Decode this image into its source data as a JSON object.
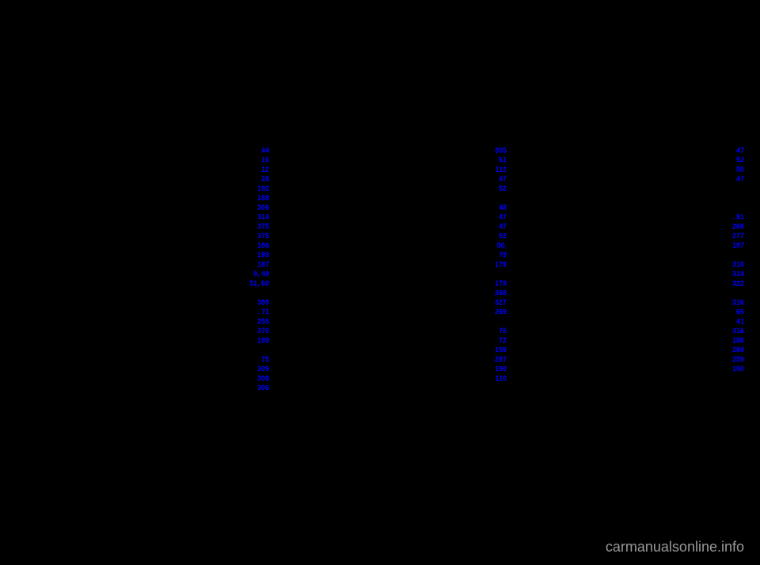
{
  "columns": [
    {
      "entries": [
        {
          "page": "44"
        },
        {
          "page": "10"
        },
        {
          "page": "12"
        },
        {
          "page": "28"
        },
        {
          "page": "192"
        },
        {
          "page": "188"
        },
        {
          "page": "306"
        },
        {
          "page": "314"
        },
        {
          "page": "375"
        },
        {
          "page": "375"
        },
        {
          "page": "186"
        },
        {
          "page": "189"
        },
        {
          "page": "187"
        },
        {
          "page": " 9, 49"
        },
        {
          "page": " 51, 60"
        },
        {
          "page": ""
        },
        {
          "page": "309"
        },
        {
          "page": ". 71"
        },
        {
          "page": "255"
        },
        {
          "page": "370"
        },
        {
          "page": "189"
        },
        {
          "page": ""
        },
        {
          "page": "75"
        },
        {
          "page": "309"
        },
        {
          "page": "308"
        },
        {
          "page": "306"
        }
      ]
    },
    {
      "entries": [
        {
          "page": "305"
        },
        {
          "page": "61"
        },
        {
          "page": "112"
        },
        {
          "page": "47"
        },
        {
          "page": "52"
        },
        {
          "page": ""
        },
        {
          "page": "48"
        },
        {
          "page": "47"
        },
        {
          "page": "47"
        },
        {
          "page": "52"
        },
        {
          "page": "     50,"
        },
        {
          "page": "79"
        },
        {
          "page": "179"
        },
        {
          "page": ""
        },
        {
          "page": "179"
        },
        {
          "page": "268"
        },
        {
          "page": "327"
        },
        {
          "page": "269"
        },
        {
          "page": ""
        },
        {
          "page": "75"
        },
        {
          "page": "72"
        },
        {
          "page": "159"
        },
        {
          "page": "287"
        },
        {
          "page": "190"
        },
        {
          "page": "110"
        }
      ]
    },
    {
      "entries": [
        {
          "page": "47"
        },
        {
          "page": "52"
        },
        {
          "page": "50"
        },
        {
          "page": "47"
        },
        {
          "page": ""
        },
        {
          "page": ""
        },
        {
          "page": ""
        },
        {
          "page": ". 81"
        },
        {
          "page": "268"
        },
        {
          "page": "277"
        },
        {
          "page": "197"
        },
        {
          "page": ""
        },
        {
          "page": "310"
        },
        {
          "page": "314"
        },
        {
          "page": "322"
        },
        {
          "page": ""
        },
        {
          "page": "316"
        },
        {
          "page": "65"
        },
        {
          "page": "41"
        },
        {
          "page": "316"
        },
        {
          "page": "186"
        },
        {
          "page": "289"
        },
        {
          "page": "259"
        },
        {
          "page": "150"
        }
      ]
    }
  ],
  "watermark": "carmanualsonline.info",
  "colors": {
    "background": "#000000",
    "link": "#0000ff",
    "watermark": "#999999"
  }
}
